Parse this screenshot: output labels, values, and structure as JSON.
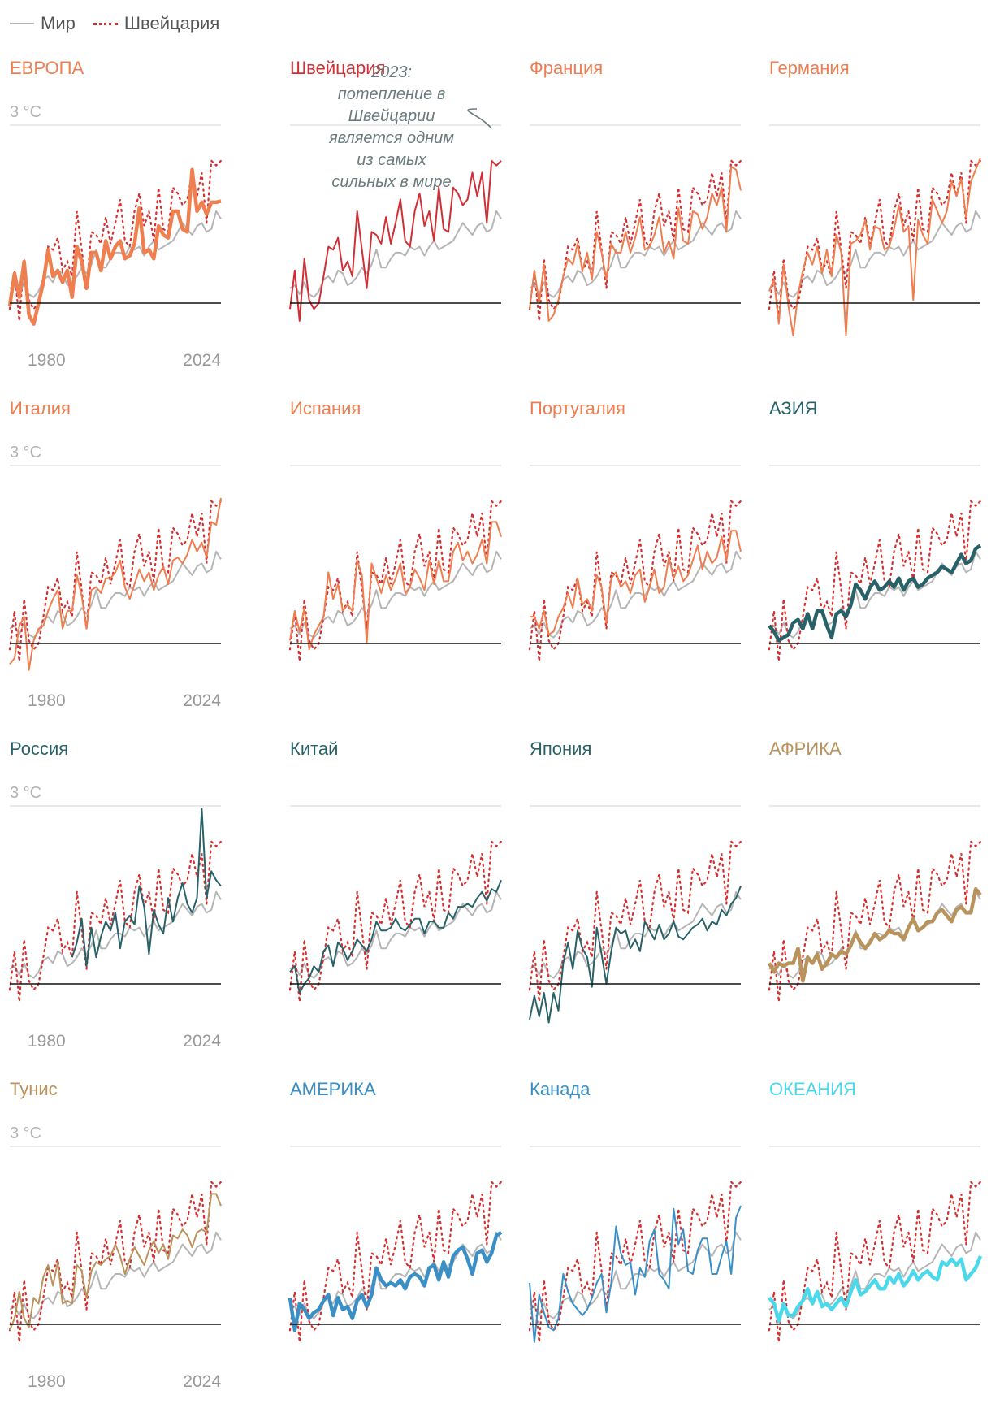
{
  "legend": {
    "world": "Мир",
    "switzerland": "Швейцария",
    "colors": {
      "world": "#b5b5b5",
      "switzerland": "#d62f2f"
    }
  },
  "axis_labels": {
    "y_top": "3 °C",
    "x_start": "1980",
    "x_end": "2024"
  },
  "annotation": {
    "text_lines": [
      "2023:",
      "потепление в",
      "Швейцарии",
      "является одним",
      "из самых",
      "сильных в мире"
    ]
  },
  "chart_data": {
    "type": "line",
    "title": "",
    "x": [
      1980,
      1981,
      1982,
      1983,
      1984,
      1985,
      1986,
      1987,
      1988,
      1989,
      1990,
      1991,
      1992,
      1993,
      1994,
      1995,
      1996,
      1997,
      1998,
      1999,
      2000,
      2001,
      2002,
      2003,
      2004,
      2005,
      2006,
      2007,
      2008,
      2009,
      2010,
      2011,
      2012,
      2013,
      2014,
      2015,
      2016,
      2017,
      2018,
      2019,
      2020,
      2021,
      2022,
      2023,
      2024
    ],
    "ylim": [
      -0.6,
      3.0
    ],
    "xlabel": "",
    "ylabel": "°C",
    "reference_series": {
      "world": [
        0.25,
        0.3,
        0.15,
        0.35,
        0.15,
        0.1,
        0.2,
        0.4,
        0.45,
        0.35,
        0.55,
        0.5,
        0.3,
        0.35,
        0.45,
        0.6,
        0.5,
        0.65,
        0.9,
        0.6,
        0.6,
        0.75,
        0.85,
        0.85,
        0.8,
        0.95,
        0.9,
        0.95,
        0.8,
        0.95,
        1.05,
        0.9,
        0.95,
        1.0,
        1.05,
        1.2,
        1.35,
        1.25,
        1.15,
        1.3,
        1.35,
        1.2,
        1.25,
        1.55,
        1.42
      ],
      "switzerland": [
        -0.1,
        0.55,
        -0.3,
        0.75,
        0.05,
        -0.1,
        0.0,
        0.45,
        0.95,
        0.9,
        1.1,
        0.55,
        0.7,
        0.45,
        1.55,
        0.9,
        0.25,
        1.2,
        1.15,
        1.0,
        1.45,
        1.0,
        1.35,
        1.75,
        1.05,
        0.95,
        1.55,
        1.85,
        1.3,
        1.55,
        1.05,
        1.95,
        1.25,
        1.2,
        1.95,
        1.85,
        1.65,
        1.75,
        2.2,
        1.8,
        2.2,
        1.35,
        2.4,
        2.32,
        2.4
      ]
    },
    "panels": [
      {
        "name": "ЕВРОПА",
        "color": "#f07f4f",
        "weight": "bold",
        "values": [
          -0.05,
          0.5,
          0.1,
          0.7,
          -0.2,
          -0.35,
          0.0,
          0.35,
          0.9,
          0.45,
          0.55,
          0.35,
          0.55,
          0.1,
          0.95,
          0.7,
          0.25,
          0.85,
          0.85,
          0.55,
          1.05,
          0.75,
          0.95,
          1.05,
          0.75,
          0.8,
          1.0,
          1.6,
          0.85,
          0.9,
          0.75,
          1.3,
          1.15,
          1.1,
          1.55,
          1.55,
          1.25,
          1.2,
          2.25,
          1.55,
          1.7,
          1.5,
          1.7,
          1.7,
          1.72
        ]
      },
      {
        "name": "Швейцария",
        "color": "#d02f35",
        "weight": "normal",
        "values": [
          -0.1,
          0.55,
          -0.3,
          0.75,
          0.05,
          -0.1,
          0.0,
          0.45,
          0.95,
          0.9,
          1.1,
          0.55,
          0.7,
          0.45,
          1.55,
          0.9,
          0.25,
          1.2,
          1.15,
          1.0,
          1.45,
          1.0,
          1.35,
          1.75,
          1.05,
          0.95,
          1.55,
          1.85,
          1.3,
          1.55,
          1.05,
          1.95,
          1.25,
          1.2,
          1.95,
          1.85,
          1.65,
          1.75,
          2.2,
          1.8,
          2.2,
          1.35,
          2.4,
          2.32,
          2.4
        ]
      },
      {
        "name": "Франция",
        "color": "#ee7d4f",
        "weight": "normal",
        "values": [
          -0.1,
          0.55,
          0.0,
          0.65,
          -0.3,
          -0.2,
          0.05,
          0.45,
          0.75,
          0.65,
          1.0,
          0.55,
          0.85,
          0.4,
          1.2,
          0.85,
          0.4,
          1.0,
          0.85,
          0.85,
          1.2,
          0.85,
          1.1,
          1.45,
          0.9,
          0.95,
          1.15,
          1.45,
          0.85,
          1.05,
          0.75,
          1.6,
          1.05,
          1.0,
          1.55,
          1.5,
          1.25,
          1.45,
          1.85,
          1.65,
          1.95,
          1.2,
          2.3,
          2.25,
          1.9
        ]
      },
      {
        "name": "Германия",
        "color": "#ee7d4f",
        "weight": "normal",
        "values": [
          0.2,
          0.4,
          -0.35,
          0.65,
          -0.05,
          -0.55,
          0.15,
          0.55,
          0.85,
          0.65,
          0.95,
          0.5,
          0.9,
          0.45,
          1.15,
          0.85,
          -0.55,
          1.0,
          1.05,
          1.15,
          1.4,
          0.9,
          1.3,
          1.25,
          0.9,
          0.95,
          1.25,
          1.65,
          1.2,
          1.3,
          0.05,
          1.4,
          1.15,
          1.0,
          1.75,
          1.55,
          1.35,
          1.55,
          2.05,
          1.8,
          2.1,
          1.45,
          2.05,
          2.25,
          2.45
        ]
      },
      {
        "name": "Италия",
        "color": "#ee7d4f",
        "weight": "normal",
        "values": [
          -0.35,
          -0.25,
          0.3,
          0.45,
          -0.45,
          0.05,
          0.25,
          0.3,
          0.55,
          0.75,
          0.9,
          0.25,
          0.55,
          0.55,
          1.15,
          0.8,
          0.25,
          0.9,
          0.95,
          0.85,
          1.1,
          1.1,
          1.2,
          1.4,
          0.95,
          0.75,
          1.0,
          1.25,
          1.05,
          1.2,
          0.9,
          1.15,
          1.3,
          1.0,
          1.4,
          1.45,
          1.35,
          1.5,
          1.75,
          1.55,
          1.7,
          1.45,
          2.05,
          2.0,
          2.45
        ]
      },
      {
        "name": "Испания",
        "color": "#ee7d4f",
        "weight": "normal",
        "values": [
          0.05,
          0.55,
          0.2,
          0.6,
          -0.1,
          0.15,
          0.3,
          0.45,
          1.2,
          0.75,
          1.0,
          0.55,
          0.65,
          0.55,
          1.4,
          1.15,
          0.0,
          1.35,
          1.1,
          0.85,
          1.15,
          0.9,
          1.1,
          1.35,
          0.85,
          0.95,
          1.25,
          1.1,
          0.9,
          1.4,
          1.0,
          1.4,
          1.05,
          1.05,
          1.55,
          1.7,
          1.4,
          1.55,
          1.35,
          1.5,
          1.75,
          1.35,
          2.05,
          2.05,
          1.8
        ]
      },
      {
        "name": "Португалия",
        "color": "#ee7d4f",
        "weight": "normal",
        "values": [
          0.45,
          0.45,
          0.25,
          0.55,
          0.15,
          0.2,
          0.45,
          0.6,
          0.85,
          0.6,
          1.1,
          0.65,
          0.75,
          0.55,
          1.15,
          0.95,
          0.35,
          1.1,
          1.2,
          0.95,
          1.05,
          0.85,
          1.15,
          1.25,
          0.7,
          0.95,
          1.25,
          0.85,
          0.95,
          1.45,
          1.1,
          1.3,
          1.05,
          1.15,
          1.4,
          1.65,
          1.25,
          1.55,
          1.35,
          1.45,
          1.8,
          1.4,
          1.9,
          1.9,
          1.55
        ]
      },
      {
        "name": "АЗИЯ",
        "color": "#286268",
        "weight": "bold",
        "values": [
          0.3,
          0.2,
          0.05,
          0.1,
          0.15,
          0.35,
          0.4,
          0.25,
          0.5,
          0.25,
          0.55,
          0.55,
          0.3,
          0.1,
          0.5,
          0.55,
          0.45,
          0.65,
          1.0,
          0.9,
          0.75,
          0.95,
          1.05,
          0.9,
          0.95,
          1.05,
          0.95,
          1.1,
          0.9,
          1.05,
          1.1,
          0.95,
          1.0,
          1.1,
          1.15,
          1.2,
          1.3,
          1.25,
          1.2,
          1.35,
          1.5,
          1.35,
          1.4,
          1.6,
          1.65
        ]
      },
      {
        "name": "Россия",
        "color": "#286268",
        "weight": "normal",
        "values": [
          null,
          null,
          null,
          null,
          null,
          null,
          null,
          null,
          null,
          null,
          null,
          null,
          null,
          0.45,
          0.7,
          1.1,
          0.3,
          0.95,
          0.45,
          0.8,
          1.05,
          0.9,
          1.2,
          0.6,
          1.05,
          1.15,
          1.0,
          1.65,
          1.3,
          0.5,
          1.25,
          1.0,
          0.85,
          1.45,
          1.05,
          1.45,
          1.7,
          1.35,
          1.2,
          1.45,
          2.95,
          1.45,
          1.9,
          1.75,
          1.65
        ]
      },
      {
        "name": "Китай",
        "color": "#286268",
        "weight": "normal",
        "values": [
          0.2,
          0.3,
          -0.15,
          0.0,
          0.1,
          0.3,
          0.2,
          0.55,
          0.65,
          0.3,
          0.7,
          0.6,
          0.4,
          0.55,
          0.75,
          0.65,
          0.55,
          0.75,
          1.05,
          0.9,
          0.9,
          0.95,
          1.1,
          0.95,
          0.9,
          1.0,
          1.1,
          1.1,
          0.85,
          1.05,
          1.05,
          0.95,
          0.95,
          1.2,
          1.1,
          1.3,
          1.3,
          1.35,
          1.3,
          1.45,
          1.55,
          1.4,
          1.6,
          1.55,
          1.75
        ]
      },
      {
        "name": "Япония",
        "color": "#286268",
        "weight": "normal",
        "values": [
          -0.6,
          -0.2,
          -0.55,
          -0.15,
          -0.65,
          -0.15,
          -0.45,
          0.35,
          0.7,
          0.25,
          0.9,
          0.6,
          0.45,
          -0.05,
          0.95,
          0.5,
          0.0,
          0.55,
          0.95,
          0.85,
          0.9,
          0.6,
          0.75,
          0.55,
          1.05,
          0.9,
          0.75,
          1.0,
          0.75,
          0.85,
          1.05,
          0.8,
          0.75,
          0.85,
          0.95,
          1.0,
          1.1,
          0.9,
          1.05,
          1.0,
          1.25,
          1.15,
          1.35,
          1.45,
          1.65
        ]
      },
      {
        "name": "АФРИКА",
        "color": "#b8935c",
        "weight": "bold",
        "values": [
          0.35,
          0.2,
          0.35,
          0.3,
          0.35,
          0.35,
          0.6,
          0.05,
          0.45,
          0.35,
          0.5,
          0.25,
          0.35,
          0.5,
          0.45,
          0.55,
          0.5,
          0.65,
          0.85,
          0.7,
          0.6,
          0.7,
          0.85,
          0.75,
          0.8,
          0.9,
          0.85,
          0.85,
          0.75,
          0.95,
          1.1,
          0.9,
          0.95,
          1.05,
          1.05,
          1.2,
          1.25,
          1.15,
          1.05,
          1.25,
          1.3,
          1.2,
          1.2,
          1.6,
          1.5
        ]
      },
      {
        "name": "Тунис",
        "color": "#b8935c",
        "weight": "normal",
        "values": [
          -0.1,
          0.1,
          0.55,
          0.1,
          -0.05,
          0.45,
          0.35,
          0.8,
          1.0,
          0.65,
          1.05,
          0.35,
          0.4,
          0.35,
          1.0,
          0.9,
          0.45,
          0.9,
          1.05,
          1.0,
          1.1,
          1.15,
          1.35,
          1.15,
          0.85,
          1.1,
          1.3,
          1.15,
          1.0,
          1.25,
          1.4,
          1.2,
          1.35,
          1.1,
          1.5,
          1.45,
          1.6,
          1.5,
          1.3,
          1.55,
          1.6,
          1.55,
          2.2,
          2.2,
          2.0
        ]
      },
      {
        "name": "АМЕРИКА",
        "color": "#3a8fc6",
        "weight": "bold",
        "values": [
          0.45,
          -0.1,
          0.35,
          0.25,
          0.1,
          0.2,
          0.25,
          0.4,
          0.5,
          0.15,
          0.45,
          0.25,
          0.3,
          0.1,
          0.4,
          0.5,
          0.3,
          0.5,
          0.95,
          0.75,
          0.65,
          0.7,
          0.65,
          0.75,
          0.6,
          0.8,
          0.85,
          0.8,
          0.65,
          0.95,
          1.0,
          0.75,
          1.05,
          0.8,
          1.15,
          1.25,
          1.3,
          1.1,
          0.85,
          1.2,
          1.25,
          1.05,
          1.2,
          1.5,
          1.55
        ]
      },
      {
        "name": "Канада",
        "color": "#3a8fc6",
        "weight": "normal",
        "values": [
          0.7,
          -0.3,
          0.5,
          0.2,
          -0.05,
          -0.1,
          0.1,
          0.85,
          0.55,
          0.35,
          0.25,
          0.15,
          0.25,
          0.45,
          0.7,
          0.85,
          0.2,
          0.7,
          1.65,
          1.2,
          1.0,
          1.05,
          0.5,
          0.95,
          0.8,
          1.4,
          1.6,
          0.85,
          0.75,
          0.6,
          1.95,
          1.35,
          1.6,
          0.9,
          0.85,
          1.25,
          1.45,
          1.45,
          0.85,
          0.85,
          1.15,
          1.4,
          0.85,
          1.8,
          2.0
        ]
      },
      {
        "name": "ОКЕАНИЯ",
        "color": "#4ad8ea",
        "weight": "bold",
        "values": [
          0.45,
          0.35,
          0.05,
          0.35,
          0.15,
          0.15,
          0.3,
          0.4,
          0.6,
          0.35,
          0.55,
          0.3,
          0.35,
          0.25,
          0.35,
          0.45,
          0.3,
          0.55,
          0.75,
          0.5,
          0.55,
          0.65,
          0.75,
          0.6,
          0.6,
          0.8,
          0.7,
          0.85,
          0.65,
          0.75,
          0.9,
          0.75,
          0.85,
          0.9,
          0.8,
          0.75,
          1.05,
          1.0,
          1.1,
          1.0,
          1.1,
          0.75,
          0.85,
          0.95,
          1.15
        ]
      }
    ]
  }
}
